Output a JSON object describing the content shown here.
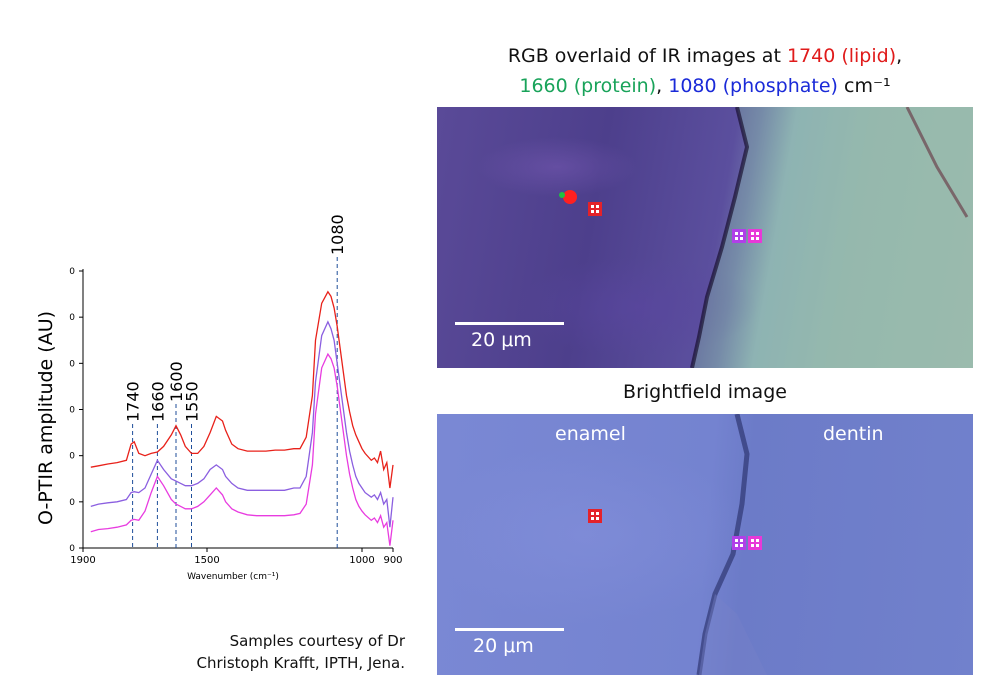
{
  "chart_data": {
    "type": "line",
    "title": "",
    "xlabel": "Wavenumber (cm⁻¹)",
    "ylabel": "O-PTIR amplitude (AU)",
    "xlim": [
      1900,
      900
    ],
    "x_ticks": [
      "1900",
      "1500",
      "1000",
      "900"
    ],
    "x_tick_values": [
      1900,
      1500,
      1000,
      900
    ],
    "y_ticks": [
      "0",
      "0",
      "0",
      "0",
      "0",
      "0",
      "0"
    ],
    "ylim": [
      0,
      6
    ],
    "grid": false,
    "legend": "none",
    "annotations": [
      {
        "label": "1740",
        "x": 1740
      },
      {
        "label": "1660",
        "x": 1660
      },
      {
        "label": "1600",
        "x": 1600
      },
      {
        "label": "1550",
        "x": 1550
      },
      {
        "label": "1080",
        "x": 1080
      }
    ],
    "series": [
      {
        "color": "#e8211a",
        "x": [
          1875,
          1850,
          1820,
          1790,
          1760,
          1745,
          1735,
          1720,
          1700,
          1680,
          1660,
          1640,
          1615,
          1600,
          1585,
          1570,
          1550,
          1530,
          1510,
          1490,
          1470,
          1450,
          1440,
          1420,
          1400,
          1370,
          1340,
          1310,
          1280,
          1250,
          1220,
          1200,
          1180,
          1160,
          1150,
          1130,
          1110,
          1100,
          1090,
          1080,
          1070,
          1060,
          1050,
          1040,
          1030,
          1020,
          1010,
          1000,
          990,
          970,
          960,
          950,
          940,
          930,
          920,
          910,
          900
        ],
        "y": [
          1.75,
          1.78,
          1.82,
          1.85,
          1.9,
          2.25,
          2.3,
          2.05,
          2.0,
          2.05,
          2.08,
          2.2,
          2.45,
          2.65,
          2.45,
          2.2,
          2.05,
          2.05,
          2.2,
          2.5,
          2.85,
          2.75,
          2.55,
          2.25,
          2.15,
          2.1,
          2.1,
          2.1,
          2.12,
          2.12,
          2.15,
          2.15,
          2.4,
          3.3,
          4.5,
          5.3,
          5.55,
          5.45,
          5.2,
          4.8,
          4.3,
          3.8,
          3.3,
          2.95,
          2.65,
          2.45,
          2.3,
          2.15,
          2.05,
          1.9,
          1.95,
          1.85,
          2.1,
          1.7,
          1.85,
          1.3,
          1.8
        ]
      },
      {
        "color": "#8b5fe0",
        "x": [
          1875,
          1850,
          1820,
          1790,
          1760,
          1745,
          1735,
          1720,
          1700,
          1680,
          1660,
          1640,
          1615,
          1600,
          1585,
          1570,
          1550,
          1530,
          1510,
          1490,
          1470,
          1450,
          1440,
          1420,
          1400,
          1370,
          1340,
          1310,
          1280,
          1250,
          1220,
          1200,
          1180,
          1160,
          1150,
          1130,
          1110,
          1100,
          1090,
          1080,
          1070,
          1060,
          1050,
          1040,
          1030,
          1020,
          1010,
          1000,
          990,
          970,
          960,
          950,
          940,
          930,
          920,
          910,
          900
        ],
        "y": [
          0.9,
          0.95,
          0.98,
          1.0,
          1.05,
          1.2,
          1.22,
          1.2,
          1.3,
          1.6,
          1.9,
          1.7,
          1.5,
          1.45,
          1.4,
          1.35,
          1.35,
          1.4,
          1.5,
          1.7,
          1.8,
          1.7,
          1.55,
          1.4,
          1.3,
          1.25,
          1.25,
          1.25,
          1.25,
          1.25,
          1.3,
          1.3,
          1.55,
          2.5,
          3.6,
          4.6,
          4.9,
          4.75,
          4.5,
          4.0,
          3.5,
          3.0,
          2.5,
          2.1,
          1.8,
          1.55,
          1.4,
          1.3,
          1.2,
          1.1,
          1.15,
          1.05,
          1.2,
          0.95,
          1.05,
          0.45,
          1.1
        ]
      },
      {
        "color": "#e83ce0",
        "x": [
          1875,
          1850,
          1820,
          1790,
          1760,
          1745,
          1735,
          1720,
          1700,
          1680,
          1660,
          1640,
          1615,
          1600,
          1585,
          1570,
          1550,
          1530,
          1510,
          1490,
          1470,
          1450,
          1440,
          1420,
          1400,
          1370,
          1340,
          1310,
          1280,
          1250,
          1220,
          1200,
          1180,
          1160,
          1150,
          1130,
          1110,
          1100,
          1090,
          1080,
          1070,
          1060,
          1050,
          1040,
          1030,
          1020,
          1010,
          1000,
          990,
          970,
          960,
          950,
          940,
          930,
          920,
          910,
          900
        ],
        "y": [
          0.35,
          0.4,
          0.42,
          0.45,
          0.5,
          0.6,
          0.62,
          0.6,
          0.8,
          1.2,
          1.55,
          1.35,
          1.05,
          0.95,
          0.9,
          0.85,
          0.85,
          0.9,
          1.0,
          1.15,
          1.3,
          1.15,
          1.0,
          0.85,
          0.78,
          0.72,
          0.7,
          0.7,
          0.7,
          0.7,
          0.72,
          0.75,
          0.95,
          1.8,
          2.9,
          3.9,
          4.2,
          4.1,
          3.9,
          3.5,
          3.0,
          2.5,
          2.0,
          1.6,
          1.3,
          1.05,
          0.9,
          0.8,
          0.72,
          0.6,
          0.65,
          0.55,
          0.7,
          0.45,
          0.55,
          0.05,
          0.6
        ]
      }
    ]
  },
  "ir_title": {
    "line1_prefix": "RGB overlaid of IR images at ",
    "lipid": "1740 (lipid)",
    "line1_suffix": ",",
    "protein": "1660 (protein)",
    "sep": ", ",
    "phosphate": "1080 (phosphate)",
    "unit": " cm⁻¹"
  },
  "colors": {
    "lipid": "#e01b1b",
    "protein": "#19a35a",
    "phosphate": "#1a2ad8"
  },
  "ir_scale": "20 μm",
  "brightfield_title": "Brightfield image",
  "bf_scale": "20 μm",
  "labels": {
    "enamel": "enamel",
    "dentin": "dentin"
  },
  "credit": {
    "line1": "Samples courtesy of Dr",
    "line2": "Christoph Krafft, IPTH, Jena."
  }
}
